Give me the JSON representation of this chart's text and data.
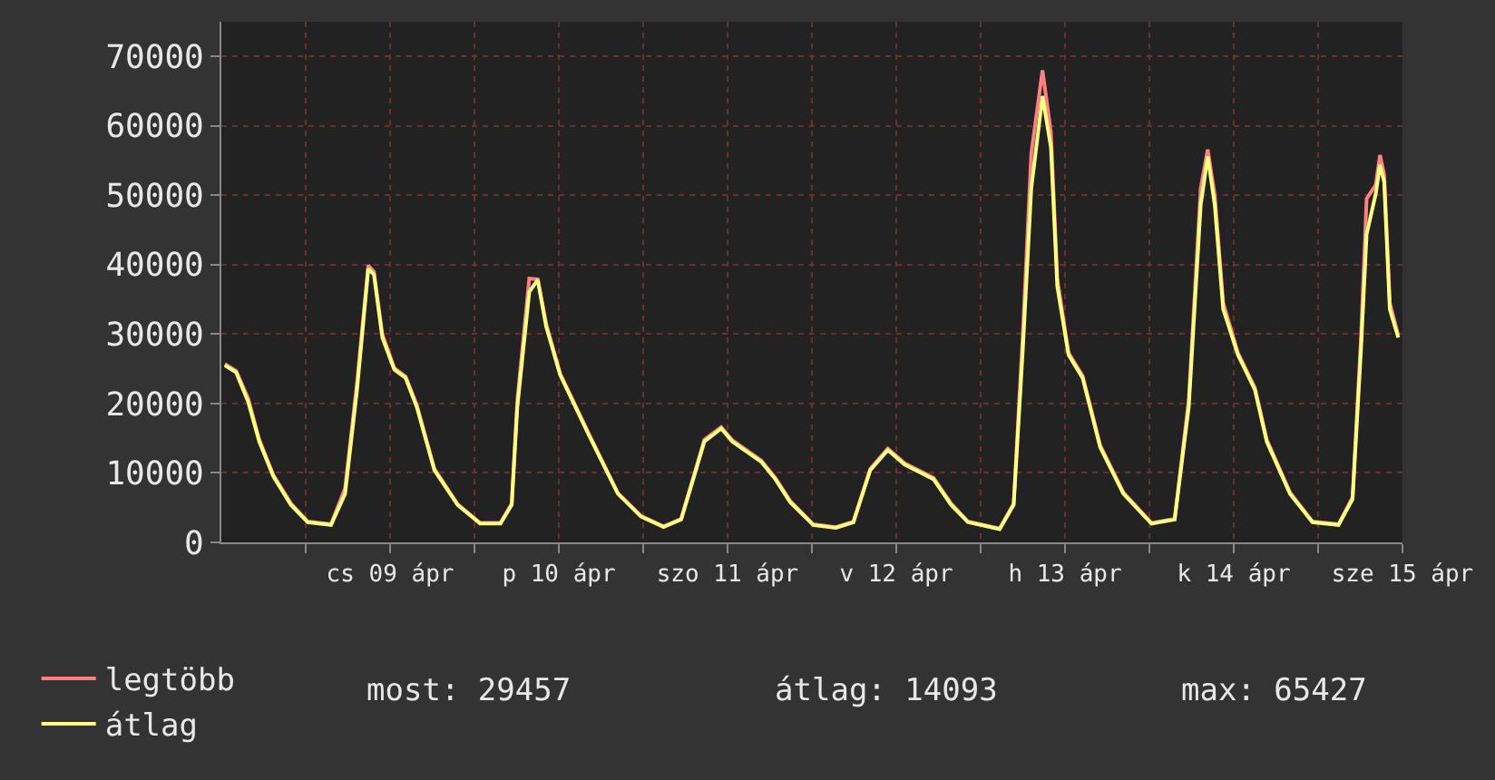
{
  "chart_data": {
    "type": "line",
    "x": [
      "--04-08T12:30",
      "--04-08T14:06",
      "--04-08T15:48",
      "--04-08T17:24",
      "--04-08T19:24",
      "--04-08T21:54",
      "--04-09T00:18",
      "--04-09T03:36",
      "--04-09T05:36",
      "--04-09T07:18",
      "--04-09T08:54",
      "--04-09T09:42",
      "--04-09T10:54",
      "--04-09T12:36",
      "--04-09T14:12",
      "--04-09T15:48",
      "--04-09T18:18",
      "--04-09T21:36",
      "--04-10T00:48",
      "--04-10T03:42",
      "--04-10T05:18",
      "--04-10T06:06",
      "--04-10T07:48",
      "--04-10T09:00",
      "--04-10T10:12",
      "--04-10T12:12",
      "--04-10T16:18",
      "--04-10T20:24",
      "--04-10T23:42",
      "--04-11T02:54",
      "--04-11T05:24",
      "--04-11T07:00",
      "--04-11T08:42",
      "--04-11T11:06",
      "--04-11T12:42",
      "--04-11T16:48",
      "--04-11T18:48",
      "--04-11T20:54",
      "--04-12T00:12",
      "--04-12T03:24",
      "--04-12T05:54",
      "--04-12T08:18",
      "--04-12T10:48",
      "--04-12T13:12",
      "--04-12T17:18",
      "--04-12T19:48",
      "--04-12T22:12",
      "--04-13T02:42",
      "--04-13T04:42",
      "--04-13T06:00",
      "--04-13T07:12",
      "--04-13T08:48",
      "--04-13T10:00",
      "--04-13T10:54",
      "--04-13T12:30",
      "--04-13T14:30",
      "--04-13T17:00",
      "--04-13T20:18",
      "--04-14T00:18",
      "--04-14T03:36",
      "--04-14T05:36",
      "--04-14T07:18",
      "--04-14T08:18",
      "--04-14T09:18",
      "--04-14T10:30",
      "--04-14T12:36",
      "--04-14T15:00",
      "--04-14T16:42",
      "--04-14T20:00",
      "--04-14T23:12",
      "--04-15T02:54",
      "--04-15T04:54",
      "--04-15T06:06",
      "--04-15T06:54",
      "--04-15T08:12",
      "--04-15T08:48",
      "--04-15T09:24",
      "--04-15T10:12",
      "--04-15T11:24"
    ],
    "series": [
      {
        "name": "legtöbb",
        "color": "#ff8080",
        "values": [
          25700,
          24700,
          20800,
          14800,
          9700,
          5600,
          3000,
          2600,
          7800,
          23000,
          39900,
          39000,
          30000,
          25100,
          23900,
          19800,
          10600,
          5500,
          2800,
          2800,
          5600,
          20500,
          38000,
          37900,
          31500,
          24300,
          15600,
          7100,
          3800,
          2300,
          3400,
          8900,
          14800,
          16600,
          14700,
          11800,
          9300,
          6000,
          2600,
          2200,
          3000,
          10600,
          13500,
          11400,
          9300,
          5600,
          3000,
          2000,
          5600,
          30000,
          56000,
          68000,
          59000,
          38000,
          27300,
          24000,
          14000,
          7200,
          2800,
          3400,
          20500,
          51000,
          56600,
          50000,
          34500,
          27300,
          22300,
          14800,
          7200,
          3000,
          2600,
          6500,
          29500,
          49500,
          51500,
          55800,
          53000,
          34500,
          29800
        ]
      },
      {
        "name": "átlag",
        "color": "#ffff80",
        "values": [
          25500,
          24500,
          20300,
          14500,
          9500,
          5400,
          2900,
          2500,
          7000,
          22000,
          39400,
          38600,
          29500,
          24900,
          23700,
          19500,
          10400,
          5400,
          2700,
          2700,
          5400,
          19500,
          36100,
          37800,
          31100,
          24100,
          15400,
          7000,
          3700,
          2200,
          3300,
          8700,
          14500,
          16400,
          14500,
          11600,
          9100,
          5800,
          2500,
          2100,
          2900,
          10400,
          13300,
          11200,
          9100,
          5400,
          2900,
          1900,
          5400,
          27800,
          51000,
          64300,
          56900,
          36900,
          27000,
          23700,
          13700,
          7000,
          2700,
          3300,
          19500,
          48600,
          55600,
          48600,
          33600,
          27000,
          22000,
          14500,
          7000,
          2900,
          2500,
          6200,
          27800,
          44400,
          50200,
          54400,
          51900,
          33600,
          29500
        ]
      }
    ],
    "xlim": [
      "--04-08T12:00",
      "--04-15T12:00"
    ],
    "xticks": [
      {
        "value": "--04-09T00:00",
        "label": null
      },
      {
        "value": "--04-09T12:00",
        "label": "cs 09 ápr"
      },
      {
        "value": "--04-10T00:00",
        "label": null
      },
      {
        "value": "--04-10T12:00",
        "label": "p 10 ápr"
      },
      {
        "value": "--04-11T00:00",
        "label": null
      },
      {
        "value": "--04-11T12:00",
        "label": "szo 11 ápr"
      },
      {
        "value": "--04-12T00:00",
        "label": null
      },
      {
        "value": "--04-12T12:00",
        "label": "v 12 ápr"
      },
      {
        "value": "--04-13T00:00",
        "label": null
      },
      {
        "value": "--04-13T12:00",
        "label": "h 13 ápr"
      },
      {
        "value": "--04-14T00:00",
        "label": null
      },
      {
        "value": "--04-14T12:00",
        "label": "k 14 ápr"
      },
      {
        "value": "--04-15T00:00",
        "label": null
      },
      {
        "value": "--04-15T12:00",
        "label": "sze 15 ápr"
      }
    ],
    "ylim": [
      0,
      75000
    ],
    "yticks": [
      0,
      10000,
      20000,
      30000,
      40000,
      50000,
      60000,
      70000
    ],
    "grid": true,
    "legend": "bottom left",
    "marker": "none",
    "line_style": "solid",
    "annotations": [
      "most: 29457",
      "átlag: 14093",
      "max: 65427"
    ]
  }
}
